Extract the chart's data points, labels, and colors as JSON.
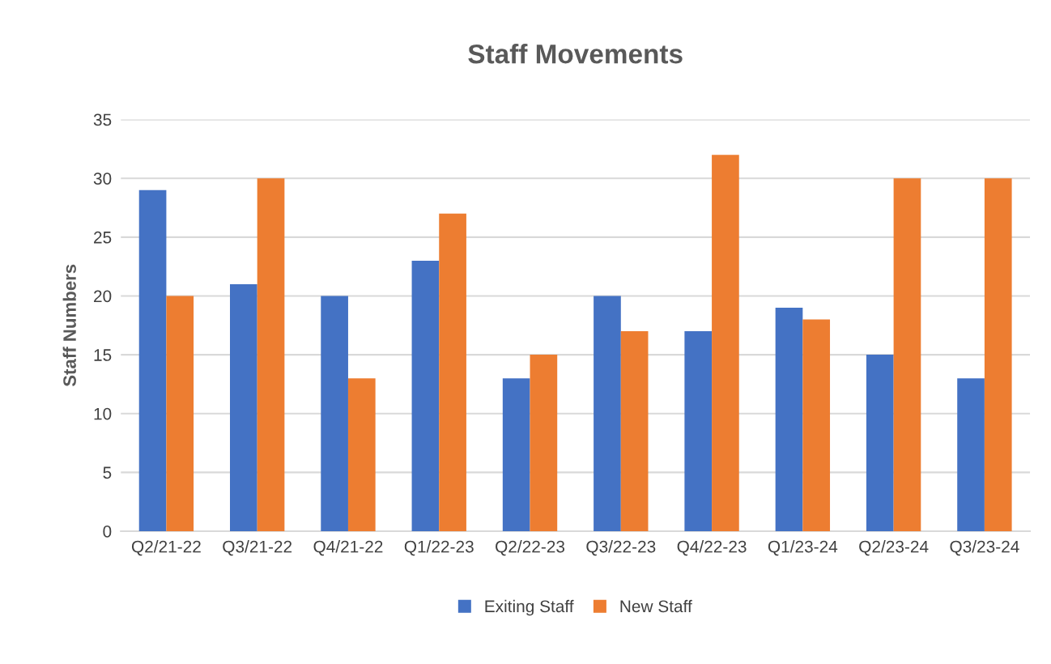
{
  "chart_data": {
    "type": "bar",
    "title": "Staff Movements",
    "ylabel": "Staff Numbers",
    "categories": [
      "Q2/21-22",
      "Q3/21-22",
      "Q4/21-22",
      "Q1/22-23",
      "Q2/22-23",
      "Q3/22-23",
      "Q4/22-23",
      "Q1/23-24",
      "Q2/23-24",
      "Q3/23-24"
    ],
    "series": [
      {
        "name": "Exiting Staff",
        "color": "#4472c4",
        "values": [
          29,
          21,
          20,
          23,
          13,
          20,
          17,
          19,
          15,
          13
        ]
      },
      {
        "name": "New Staff",
        "color": "#ed7d31",
        "values": [
          20,
          30,
          13,
          27,
          15,
          17,
          32,
          18,
          30,
          30
        ]
      }
    ],
    "ylim": [
      0,
      35
    ],
    "yticks": [
      0,
      5,
      10,
      15,
      20,
      25,
      30,
      35
    ],
    "grid": "y",
    "legend": "bottom"
  }
}
